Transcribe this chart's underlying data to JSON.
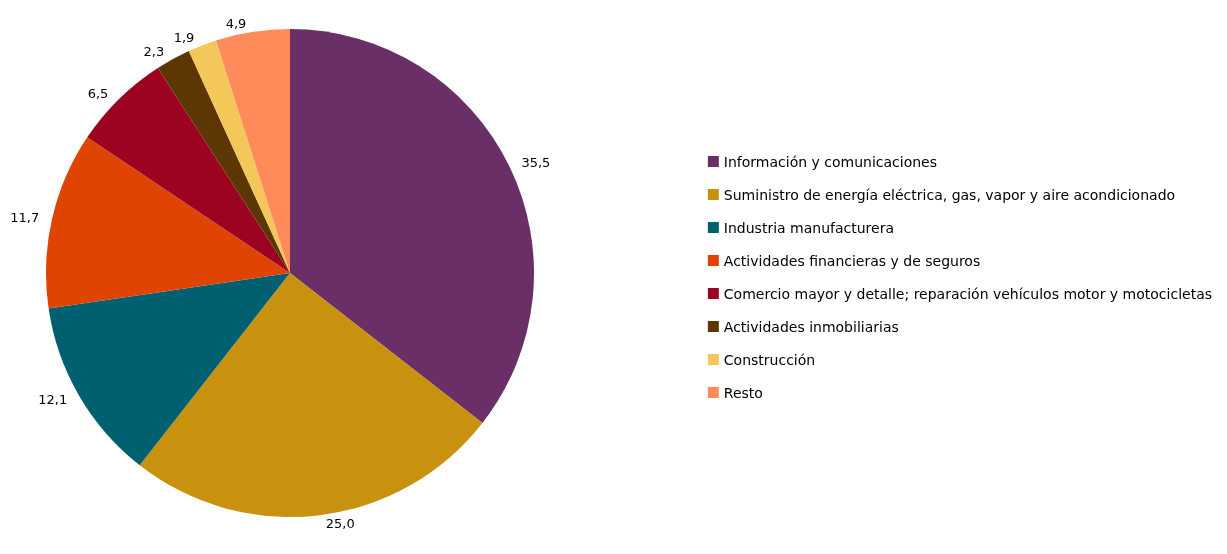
{
  "chart_data": {
    "type": "pie",
    "categories": [
      "Información y comunicaciones",
      "Suministro de energía eléctrica, gas, vapor y aire acondicionado",
      "Industria manufacturera",
      "Actividades financieras y de seguros",
      "Comercio mayor y detalle; reparación vehículos motor y motocicletas",
      "Actividades inmobiliarias",
      "Construcción",
      "Resto"
    ],
    "values": [
      35.5,
      25.0,
      12.1,
      11.7,
      6.5,
      2.3,
      1.9,
      4.9
    ],
    "value_labels": [
      "35,5",
      "25,0",
      "12,1",
      "11,7",
      "6,5",
      "2,3",
      "1,9",
      "4,9"
    ],
    "colors": [
      "#692f66",
      "#c8920f",
      "#006070",
      "#e04403",
      "#9b0320",
      "#5c3703",
      "#f3c75a",
      "#fe8b59"
    ],
    "legend": "right"
  }
}
